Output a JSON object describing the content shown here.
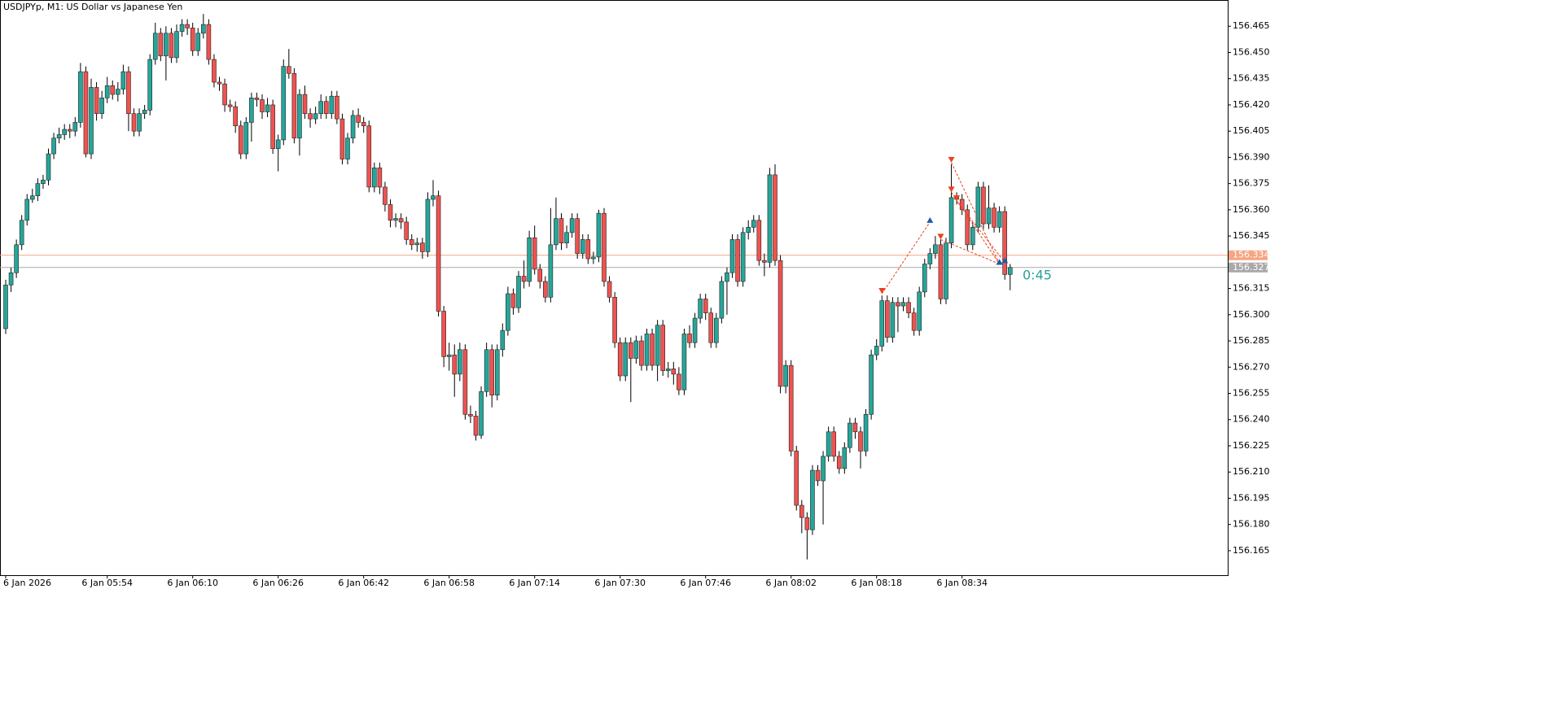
{
  "title": "USDJPYp, M1:  US Dollar vs Japanese Yen",
  "timer": "0:45",
  "chart_data": {
    "type": "candlestick",
    "categories": [
      "6 Jan 2026",
      null,
      null,
      null,
      null,
      null,
      null,
      null,
      null,
      null,
      null,
      null,
      null,
      null,
      null,
      null,
      null,
      null,
      null,
      "6 Jan 05:54",
      null,
      null,
      null,
      null,
      null,
      null,
      null,
      null,
      null,
      null,
      null,
      null,
      null,
      null,
      null,
      "6 Jan 06:10",
      null,
      null,
      null,
      null,
      null,
      null,
      null,
      null,
      null,
      null,
      null,
      null,
      null,
      null,
      null,
      "6 Jan 06:26",
      null,
      null,
      null,
      null,
      null,
      null,
      null,
      null,
      null,
      null,
      null,
      null,
      null,
      null,
      null,
      "6 Jan 06:42",
      null,
      null,
      null,
      null,
      null,
      null,
      null,
      null,
      null,
      null,
      null,
      null,
      null,
      null,
      null,
      "6 Jan 06:58",
      null,
      null,
      null,
      null,
      null,
      null,
      null,
      null,
      null,
      null,
      null,
      null,
      null,
      null,
      null,
      "6 Jan 07:14",
      null,
      null,
      null,
      null,
      null,
      null,
      null,
      null,
      null,
      null,
      null,
      null,
      null,
      null,
      null,
      "6 Jan 07:30",
      null,
      null,
      null,
      null,
      null,
      null,
      null,
      null,
      null,
      null,
      null,
      null,
      null,
      null,
      null,
      "6 Jan 07:46",
      null,
      null,
      null,
      null,
      null,
      null,
      null,
      null,
      null,
      null,
      null,
      null,
      null,
      null,
      null,
      "6 Jan 08:02",
      null,
      null,
      null,
      null,
      null,
      null,
      null,
      null,
      null,
      null,
      null,
      null,
      null,
      null,
      null,
      "6 Jan 08:18",
      null,
      null,
      null,
      null,
      null,
      null,
      null,
      null,
      null,
      null,
      null,
      null,
      null,
      null,
      null,
      "6 Jan 08:34",
      null,
      null,
      null,
      null,
      null,
      null,
      null,
      null,
      null
    ],
    "open": [
      156.292,
      156.317,
      156.324,
      156.34,
      156.354,
      156.366,
      156.368,
      156.375,
      156.377,
      156.392,
      156.401,
      156.403,
      156.406,
      156.405,
      156.41,
      156.439,
      156.392,
      156.43,
      156.415,
      156.424,
      156.431,
      156.426,
      156.429,
      156.439,
      156.415,
      156.405,
      156.415,
      156.417,
      156.446,
      156.461,
      156.448,
      156.461,
      156.447,
      156.462,
      156.466,
      156.464,
      156.451,
      156.461,
      156.466,
      156.446,
      156.433,
      156.432,
      156.42,
      156.419,
      156.408,
      156.392,
      156.41,
      156.424,
      156.423,
      156.416,
      156.42,
      156.395,
      156.4,
      156.442,
      156.438,
      156.401,
      156.426,
      156.415,
      156.412,
      156.415,
      156.422,
      156.415,
      156.425,
      156.412,
      156.389,
      156.401,
      156.414,
      156.41,
      156.408,
      156.373,
      156.384,
      156.373,
      156.363,
      156.354,
      156.355,
      156.353,
      156.343,
      156.34,
      156.341,
      156.336,
      156.366,
      156.368,
      156.302,
      156.276,
      156.277,
      156.266,
      156.28,
      156.243,
      156.242,
      156.231,
      156.256,
      156.28,
      156.254,
      156.28,
      156.291,
      156.312,
      156.304,
      156.322,
      156.319,
      156.344,
      156.326,
      156.319,
      156.31,
      156.34,
      156.355,
      156.341,
      156.347,
      156.355,
      156.335,
      156.343,
      156.332,
      156.333,
      156.358,
      156.319,
      156.31,
      156.284,
      156.265,
      156.284,
      156.275,
      156.285,
      156.271,
      156.289,
      156.271,
      156.294,
      156.268,
      156.269,
      156.266,
      156.257,
      156.289,
      156.284,
      156.298,
      156.309,
      156.301,
      156.284,
      156.298,
      156.319,
      156.324,
      156.343,
      156.319,
      156.347,
      156.35,
      156.354,
      156.331,
      156.33,
      156.38,
      156.331,
      156.259,
      156.271,
      156.222,
      156.191,
      156.184,
      156.177,
      156.211,
      156.205,
      156.219,
      156.233,
      156.219,
      156.212,
      156.224,
      156.238,
      156.233,
      156.222,
      156.243,
      156.277,
      156.282,
      156.308,
      156.287,
      156.307,
      156.305,
      156.307,
      156.301,
      156.291,
      156.313,
      156.329,
      156.335,
      156.34,
      156.309,
      156.341,
      156.367,
      156.366,
      156.36,
      156.34,
      156.35,
      156.373,
      156.352,
      156.361,
      156.35,
      156.359,
      156.323
    ],
    "high": [
      156.32,
      156.327,
      156.343,
      156.357,
      156.369,
      156.372,
      156.378,
      156.38,
      156.395,
      156.404,
      156.407,
      156.409,
      156.409,
      156.413,
      156.444,
      156.442,
      156.435,
      156.433,
      156.428,
      156.436,
      156.434,
      156.433,
      156.443,
      156.442,
      156.418,
      156.418,
      156.42,
      156.449,
      156.467,
      156.464,
      156.465,
      156.464,
      156.466,
      156.469,
      156.469,
      156.467,
      156.464,
      156.472,
      156.469,
      156.449,
      156.436,
      156.435,
      156.423,
      156.422,
      156.411,
      156.413,
      156.427,
      156.427,
      156.426,
      156.424,
      156.423,
      156.403,
      156.446,
      156.452,
      156.441,
      156.429,
      156.431,
      156.418,
      156.419,
      156.426,
      156.425,
      156.428,
      156.428,
      156.415,
      156.404,
      156.417,
      156.418,
      156.413,
      156.411,
      156.387,
      156.387,
      156.376,
      156.366,
      156.358,
      156.358,
      156.356,
      156.346,
      156.344,
      156.344,
      156.37,
      156.377,
      156.371,
      156.305,
      156.284,
      156.283,
      156.284,
      156.283,
      156.248,
      156.245,
      156.259,
      156.284,
      156.283,
      156.283,
      156.295,
      156.316,
      156.315,
      156.325,
      156.331,
      156.348,
      156.351,
      156.329,
      156.322,
      156.361,
      156.367,
      156.358,
      156.351,
      156.358,
      156.358,
      156.346,
      156.346,
      156.336,
      156.36,
      156.361,
      156.322,
      156.313,
      156.287,
      156.287,
      156.287,
      156.288,
      156.288,
      156.292,
      156.292,
      156.297,
      156.297,
      156.273,
      156.273,
      156.27,
      156.292,
      156.294,
      156.301,
      156.312,
      156.312,
      156.304,
      156.301,
      156.322,
      156.327,
      156.346,
      156.346,
      156.35,
      156.354,
      156.357,
      156.357,
      156.335,
      156.384,
      156.386,
      156.334,
      156.274,
      156.274,
      156.225,
      156.194,
      156.187,
      156.214,
      156.214,
      156.222,
      156.236,
      156.236,
      156.222,
      156.227,
      156.241,
      156.241,
      156.236,
      156.246,
      156.28,
      156.286,
      156.311,
      156.311,
      156.31,
      156.31,
      156.31,
      156.31,
      156.304,
      156.316,
      156.332,
      156.338,
      156.345,
      156.343,
      156.344,
      156.386,
      156.37,
      156.369,
      156.363,
      156.353,
      156.376,
      156.376,
      156.374,
      156.364,
      156.362,
      156.362,
      156.329
    ],
    "low": [
      156.289,
      156.313,
      156.321,
      156.337,
      156.351,
      156.364,
      156.365,
      156.372,
      156.374,
      156.389,
      156.398,
      156.4,
      156.401,
      156.402,
      156.407,
      156.39,
      156.389,
      156.411,
      156.412,
      156.421,
      156.423,
      156.422,
      156.426,
      156.405,
      156.402,
      156.402,
      156.412,
      156.414,
      156.443,
      156.445,
      156.434,
      156.444,
      156.444,
      156.459,
      156.46,
      156.448,
      156.448,
      156.458,
      156.443,
      156.43,
      156.428,
      156.416,
      156.416,
      156.404,
      156.389,
      156.389,
      156.399,
      156.419,
      156.412,
      156.413,
      156.392,
      156.382,
      156.397,
      156.435,
      156.398,
      156.391,
      156.412,
      156.407,
      156.409,
      156.412,
      156.412,
      156.412,
      156.409,
      156.386,
      156.386,
      156.398,
      156.407,
      156.404,
      156.37,
      156.37,
      156.369,
      156.359,
      156.35,
      156.35,
      156.349,
      156.34,
      156.337,
      156.336,
      156.332,
      156.333,
      156.362,
      156.299,
      156.27,
      156.268,
      156.253,
      156.262,
      156.24,
      156.238,
      156.228,
      156.229,
      156.253,
      156.247,
      156.251,
      156.276,
      156.288,
      156.3,
      156.301,
      156.315,
      156.316,
      156.323,
      156.315,
      156.307,
      156.307,
      156.337,
      156.337,
      156.338,
      156.344,
      156.332,
      156.332,
      156.329,
      156.329,
      156.33,
      156.316,
      156.307,
      156.281,
      156.262,
      156.262,
      156.25,
      156.272,
      156.268,
      156.268,
      156.268,
      156.262,
      156.265,
      156.264,
      156.26,
      156.254,
      156.254,
      156.281,
      156.281,
      156.295,
      156.297,
      156.281,
      156.281,
      156.295,
      156.3,
      156.321,
      156.316,
      156.316,
      156.343,
      156.347,
      156.328,
      156.322,
      156.327,
      156.328,
      156.255,
      156.255,
      156.219,
      156.188,
      156.175,
      156.16,
      156.174,
      156.202,
      156.18,
      156.216,
      156.216,
      156.209,
      156.209,
      156.221,
      156.229,
      156.212,
      156.219,
      156.24,
      156.274,
      156.279,
      156.284,
      156.284,
      156.29,
      156.302,
      156.298,
      156.288,
      156.288,
      156.31,
      156.326,
      156.332,
      156.306,
      156.306,
      156.338,
      156.363,
      156.357,
      156.337,
      156.337,
      156.347,
      156.349,
      156.349,
      156.347,
      156.347,
      156.32,
      156.314
    ],
    "close": [
      156.317,
      156.324,
      156.34,
      156.354,
      156.366,
      156.368,
      156.375,
      156.377,
      156.392,
      156.401,
      156.403,
      156.406,
      156.405,
      156.41,
      156.439,
      156.392,
      156.43,
      156.415,
      156.424,
      156.431,
      156.426,
      156.429,
      156.439,
      156.415,
      156.405,
      156.415,
      156.417,
      156.446,
      156.461,
      156.448,
      156.461,
      156.447,
      156.462,
      156.466,
      156.464,
      156.451,
      156.461,
      156.466,
      156.446,
      156.433,
      156.432,
      156.42,
      156.419,
      156.408,
      156.392,
      156.41,
      156.424,
      156.423,
      156.416,
      156.42,
      156.395,
      156.4,
      156.442,
      156.438,
      156.401,
      156.426,
      156.415,
      156.412,
      156.415,
      156.422,
      156.415,
      156.425,
      156.412,
      156.389,
      156.401,
      156.414,
      156.41,
      156.408,
      156.373,
      156.384,
      156.373,
      156.363,
      156.354,
      156.355,
      156.353,
      156.343,
      156.34,
      156.341,
      156.336,
      156.366,
      156.368,
      156.302,
      156.276,
      156.277,
      156.266,
      156.28,
      156.243,
      156.242,
      156.231,
      156.256,
      156.28,
      156.254,
      156.28,
      156.291,
      156.312,
      156.304,
      156.322,
      156.319,
      156.344,
      156.326,
      156.319,
      156.31,
      156.34,
      156.355,
      156.341,
      156.347,
      156.355,
      156.335,
      156.343,
      156.332,
      156.333,
      156.358,
      156.319,
      156.31,
      156.284,
      156.265,
      156.284,
      156.275,
      156.285,
      156.271,
      156.289,
      156.271,
      156.294,
      156.268,
      156.269,
      156.266,
      156.257,
      156.289,
      156.284,
      156.298,
      156.309,
      156.301,
      156.284,
      156.298,
      156.319,
      156.324,
      156.343,
      156.319,
      156.347,
      156.35,
      156.354,
      156.331,
      156.33,
      156.38,
      156.331,
      156.259,
      156.271,
      156.222,
      156.191,
      156.184,
      156.177,
      156.211,
      156.205,
      156.219,
      156.233,
      156.219,
      156.212,
      156.224,
      156.238,
      156.233,
      156.222,
      156.243,
      156.277,
      156.282,
      156.308,
      156.287,
      156.307,
      156.305,
      156.307,
      156.301,
      156.291,
      156.313,
      156.329,
      156.335,
      156.34,
      156.309,
      156.341,
      156.367,
      156.366,
      156.36,
      156.34,
      156.35,
      156.373,
      156.352,
      156.361,
      156.35,
      156.359,
      156.323,
      156.327
    ],
    "bull_color": "#26a69a",
    "bear_color": "#ef5350",
    "ylim": [
      156.151,
      156.48
    ],
    "yticks": [
      156.465,
      {
        "value": 156.45,
        "label": "156.450"
      },
      156.435,
      {
        "value": 156.42,
        "label": "156.420"
      },
      156.405,
      {
        "value": 156.39,
        "label": "156.390"
      },
      156.375,
      {
        "value": 156.36,
        "label": "156.360"
      },
      156.345,
      156.315,
      {
        "value": 156.3,
        "label": "156.300"
      },
      156.285,
      {
        "value": 156.27,
        "label": "156.270"
      },
      156.255,
      {
        "value": 156.24,
        "label": "156.240"
      },
      156.225,
      {
        "value": 156.21,
        "label": "156.210"
      },
      156.195,
      {
        "value": 156.18,
        "label": "156.180"
      },
      156.165
    ],
    "hlines": [
      {
        "value": 156.334,
        "color": "#f4a582"
      },
      {
        "value": 156.327,
        "color": "#a9a9a9"
      }
    ],
    "entry_color": "#e8411f",
    "exit_color": "#1e5ca8",
    "trades": [
      {
        "open_index": 164,
        "open_price": 156.312,
        "close_index": 173,
        "close_price": 156.353
      },
      {
        "open_index": 175,
        "open_price": 156.343,
        "close_index": 186,
        "close_price": 156.329
      },
      {
        "open_index": 177,
        "open_price": 156.387,
        "close_index": 186,
        "close_price": 156.329
      },
      {
        "open_index": 177,
        "open_price": 156.37,
        "close_index": 186,
        "close_price": 156.329
      },
      {
        "open_index": 178,
        "open_price": 156.365,
        "close_index": 187,
        "close_price": 156.33
      }
    ]
  }
}
